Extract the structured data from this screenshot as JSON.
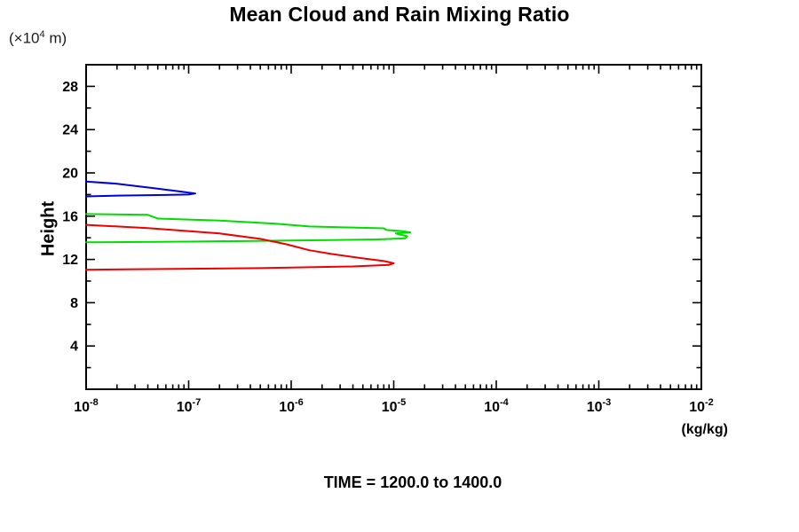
{
  "title": "Mean Cloud and Rain Mixing Ratio",
  "footer": "TIME = 1200.0 to 1400.0",
  "y_units": {
    "prefix": "(×10",
    "exp": "4",
    "suffix": " m)"
  },
  "colors": {
    "axis": "#000000",
    "background": "#ffffff"
  },
  "chart_data": {
    "type": "line",
    "title": "Mean Cloud and Rain Mixing Ratio",
    "xlabel": "(kg/kg)",
    "ylabel": "Height",
    "y_units_label": "(×10⁴ m)",
    "footer_annotation": "TIME = 1200.0 to 1400.0",
    "x_scale": "log",
    "xlim": [
      1e-08,
      0.01
    ],
    "ylim": [
      0,
      30
    ],
    "x_tick_exponents": [
      -8,
      -7,
      -6,
      -5,
      -4,
      -3,
      -2
    ],
    "y_major_ticks": [
      4,
      8,
      12,
      16,
      20,
      24,
      28
    ],
    "y_minor_tick_step": 2,
    "grid": false,
    "legend": "none",
    "frame": "full box with mirrored inward ticks",
    "series": [
      {
        "id": "blue",
        "name": "blue profile",
        "color": "#0000dd",
        "points_format": [
          "mixing_ratio_kg_per_kg",
          "height_x10^4_m"
        ],
        "points": [
          [
            1e-08,
            19.2
          ],
          [
            2e-08,
            19.0
          ],
          [
            4.5e-08,
            18.6
          ],
          [
            8e-08,
            18.3
          ],
          [
            1.16e-07,
            18.1
          ],
          [
            1e-07,
            18.0
          ],
          [
            5e-08,
            17.95
          ],
          [
            2e-08,
            17.9
          ],
          [
            1e-08,
            17.83
          ]
        ]
      },
      {
        "id": "green",
        "name": "green profile",
        "color": "#00dd00",
        "points_format": [
          "mixing_ratio_kg_per_kg",
          "height_x10^4_m"
        ],
        "points": [
          [
            1e-08,
            16.2
          ],
          [
            4e-08,
            16.12
          ],
          [
            5e-08,
            15.78
          ],
          [
            2e-07,
            15.6
          ],
          [
            7e-07,
            15.3
          ],
          [
            1.5e-06,
            15.05
          ],
          [
            4e-06,
            14.95
          ],
          [
            8e-06,
            14.88
          ],
          [
            8.5e-06,
            14.72
          ],
          [
            1.2e-05,
            14.62
          ],
          [
            1.45e-05,
            14.5
          ],
          [
            1.05e-05,
            14.4
          ],
          [
            1.15e-05,
            14.3
          ],
          [
            1.35e-05,
            14.15
          ],
          [
            1.3e-05,
            13.95
          ],
          [
            7e-06,
            13.85
          ],
          [
            1e-06,
            13.75
          ],
          [
            1e-07,
            13.65
          ],
          [
            1e-08,
            13.58
          ]
        ]
      },
      {
        "id": "red",
        "name": "red profile",
        "color": "#ee0000",
        "points_format": [
          "mixing_ratio_kg_per_kg",
          "height_x10^4_m"
        ],
        "points": [
          [
            1e-08,
            15.2
          ],
          [
            4e-08,
            14.9
          ],
          [
            2e-07,
            14.4
          ],
          [
            5e-07,
            13.9
          ],
          [
            9e-07,
            13.4
          ],
          [
            1.5e-06,
            12.85
          ],
          [
            2.5e-06,
            12.5
          ],
          [
            5e-06,
            12.1
          ],
          [
            8e-06,
            11.85
          ],
          [
            1e-05,
            11.65
          ],
          [
            9e-06,
            11.5
          ],
          [
            4e-06,
            11.35
          ],
          [
            5e-07,
            11.2
          ],
          [
            1e-08,
            11.05
          ]
        ]
      }
    ]
  }
}
